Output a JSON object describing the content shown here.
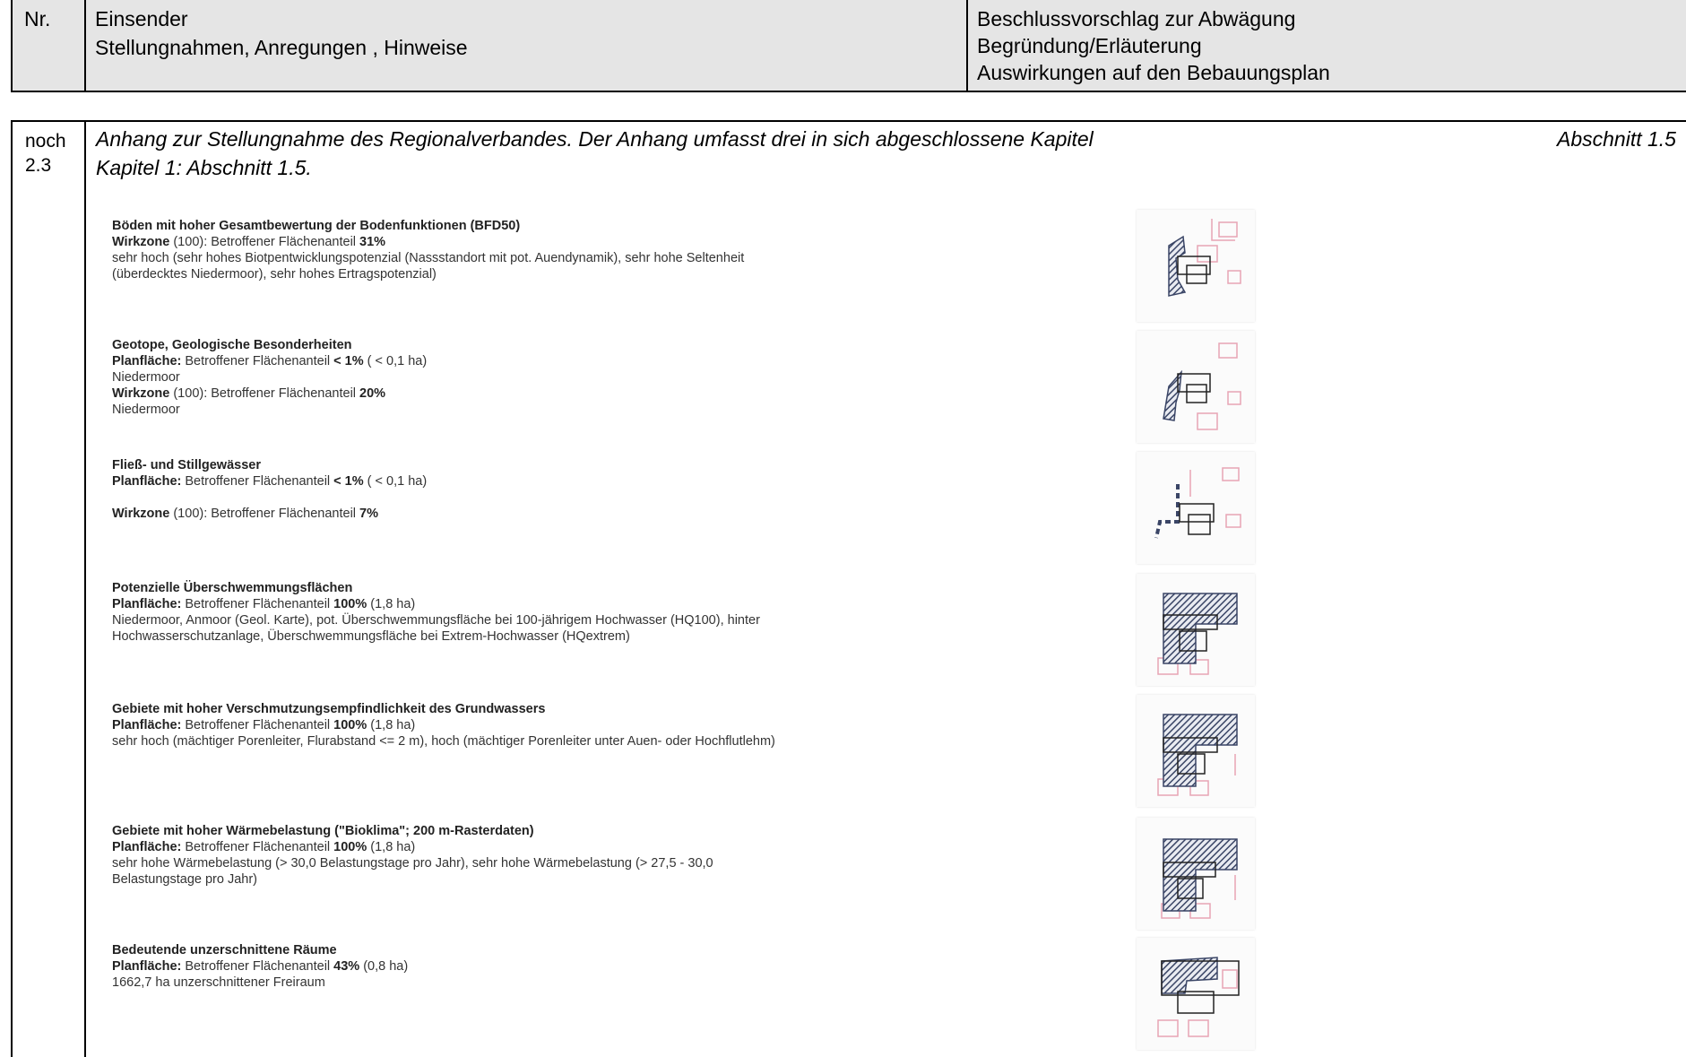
{
  "header": {
    "col_nr": "Nr.",
    "col_sender_1": "Einsender",
    "col_sender_2": "Stellungnahmen, Anregungen , Hinweise",
    "col_decision_1": "Beschlussvorschlag zur Abwägung",
    "col_decision_2": "Begründung/Erläuterung",
    "col_decision_3": "Auswirkungen auf den Bebauungsplan"
  },
  "row": {
    "nr_1": "noch",
    "nr_2": "2.3",
    "intro_1": "Anhang zur Stellungnahme des Regionalverbandes. Der Anhang umfasst drei in sich abgeschlossene Kapitel",
    "intro_2": "Kapitel 1: Abschnitt 1.5.",
    "section_ref": "Abschnitt 1.5"
  },
  "entries": [
    {
      "title": "Böden mit hoher Gesamtbewertung der Bodenfunktionen (BFD50)",
      "l1_label": "Wirkzone",
      "l1_text": " (100): Betroffener Flächenanteil ",
      "l1_value": "31%",
      "l2": "sehr hoch (sehr hohes Biotpentwicklungspotenzial (Nassstandort mit pot. Auendynamik), sehr hohe Seltenheit",
      "l3": "(überdecktes Niedermoor), sehr hohes Ertragspotenzial)",
      "map_icon": "map-thumbnail-soil"
    },
    {
      "title": "Geotope, Geologische Besonderheiten",
      "l1_label": "Planfläche:",
      "l1_text": " Betroffener Flächenanteil ",
      "l1_value": "< 1%",
      "l1_tail": " ( < 0,1 ha)",
      "l2": "Niedermoor",
      "l3_label": "Wirkzone",
      "l3_text": " (100): Betroffener Flächenanteil ",
      "l3_value": "20%",
      "l4": "Niedermoor",
      "map_icon": "map-thumbnail-geotope"
    },
    {
      "title": "Fließ- und Stillgewässer",
      "l1_label": "Planfläche:",
      "l1_text": " Betroffener Flächenanteil ",
      "l1_value": "< 1%",
      "l1_tail": " ( < 0,1 ha)",
      "l3_label": "Wirkzone",
      "l3_text": " (100): Betroffener Flächenanteil ",
      "l3_value": "7%",
      "map_icon": "map-thumbnail-water"
    },
    {
      "title": "Potenzielle Überschwemmungsflächen",
      "l1_label": "Planfläche:",
      "l1_text": " Betroffener Flächenanteil ",
      "l1_value": "100%",
      "l1_tail": " (1,8 ha)",
      "l2": "Niedermoor, Anmoor (Geol. Karte), pot. Überschwemmungsfläche bei 100-jährigem Hochwasser (HQ100), hinter",
      "l3": "Hochwasserschutzanlage, Überschwemmungsfläche bei Extrem-Hochwasser (HQextrem)",
      "map_icon": "map-thumbnail-flood"
    },
    {
      "title": "Gebiete mit hoher Verschmutzungsempfindlichkeit des Grundwassers",
      "l1_label": "Planfläche:",
      "l1_text": " Betroffener Flächenanteil ",
      "l1_value": "100%",
      "l1_tail": " (1,8 ha)",
      "l2": "sehr hoch (mächtiger Porenleiter, Flurabstand <= 2 m), hoch (mächtiger Porenleiter unter Auen- oder Hochflutlehm)",
      "map_icon": "map-thumbnail-groundwater"
    },
    {
      "title": "Gebiete mit hoher Wärmebelastung (\"Bioklima\"; 200 m-Rasterdaten)",
      "l1_label": "Planfläche:",
      "l1_text": " Betroffener Flächenanteil ",
      "l1_value": "100%",
      "l1_tail": " (1,8 ha)",
      "l2": "sehr hohe Wärmebelastung (> 30,0 Belastungstage pro Jahr), sehr hohe Wärmebelastung (> 27,5 - 30,0",
      "l3": "Belastungstage pro Jahr)",
      "map_icon": "map-thumbnail-heat"
    },
    {
      "title": "Bedeutende unzerschnittene Räume",
      "l1_label": "Planfläche:",
      "l1_text": " Betroffener Flächenanteil ",
      "l1_value": "43%",
      "l1_tail": " (0,8 ha)",
      "l2": "1662,7 ha unzerschnittener Freiraum",
      "map_icon": "map-thumbnail-open-space"
    }
  ],
  "colors": {
    "header_bg": "#e5e5e5",
    "hatch": "#3a4566",
    "map_pink": "#e8a5b5"
  }
}
